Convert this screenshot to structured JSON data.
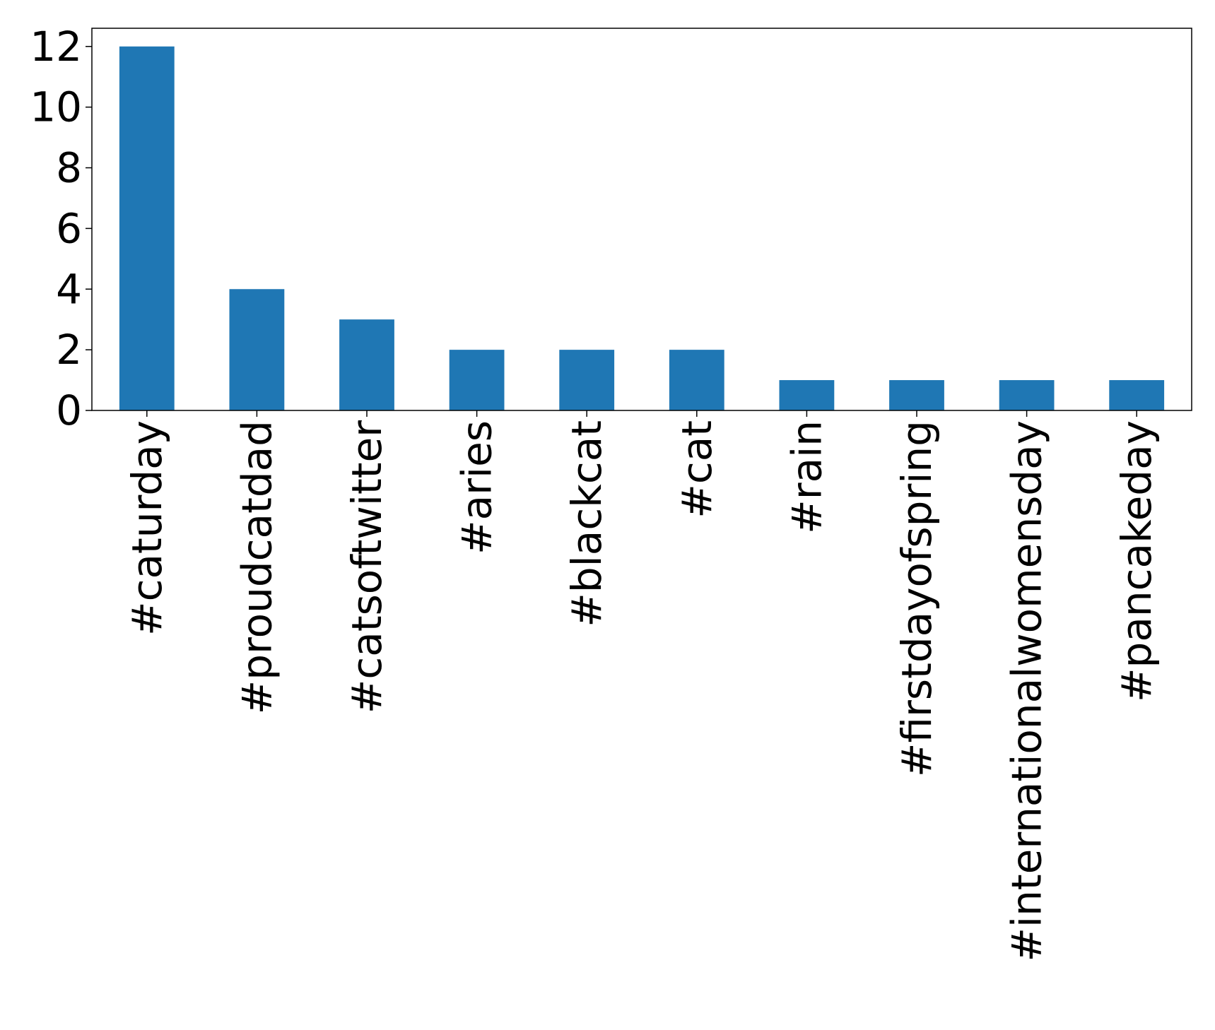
{
  "chart_data": {
    "type": "bar",
    "title": "",
    "xlabel": "",
    "ylabel": "",
    "categories": [
      "#caturday",
      "#proudcatdad",
      "#catsoftwitter",
      "#aries",
      "#blackcat",
      "#cat",
      "#rain",
      "#firstdayofspring",
      "#internationalwomensday",
      "#pancakeday"
    ],
    "values": [
      12,
      4,
      3,
      2,
      2,
      2,
      1,
      1,
      1,
      1
    ],
    "ylim": [
      0,
      12.6
    ],
    "yticks": [
      0,
      2,
      4,
      6,
      8,
      10,
      12
    ],
    "ytick_labels": [
      "0",
      "2",
      "4",
      "6",
      "8",
      "10",
      "12"
    ],
    "bar_color": "#1f77b4",
    "grid": false,
    "legend": "none"
  }
}
